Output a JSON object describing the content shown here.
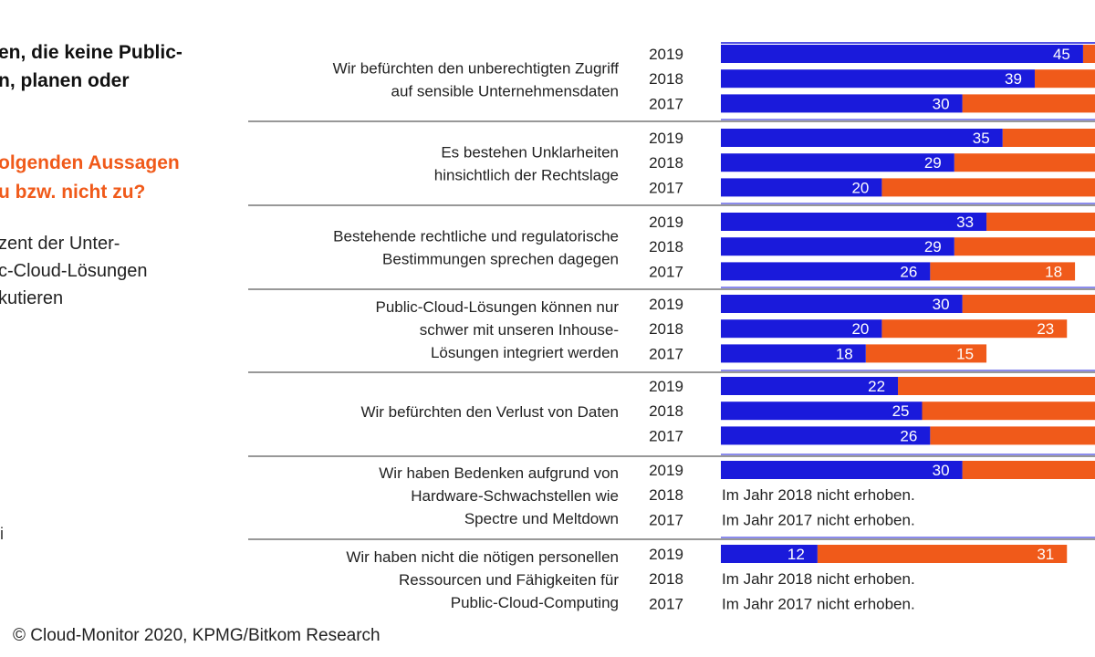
{
  "left_panel": {
    "heading_lines": [
      "en, die keine Public-",
      "n, planen oder"
    ],
    "question_lines": [
      "olgenden Aussagen",
      "u bzw. nicht zu?"
    ],
    "note_lines": [
      "zent der Unter-",
      "c-Cloud-Lösungen",
      "kutieren"
    ],
    "edge_mark": "i"
  },
  "footer": "© Cloud-Monitor 2020, KPMG/Bitkom Research",
  "colors": {
    "blue": "#1a1adb",
    "orange": "#f05a1a",
    "divider": "#777777",
    "top_rule": "#1a1adb"
  },
  "chart_data": {
    "type": "bar",
    "orientation": "horizontal",
    "stacked": true,
    "years": [
      "2019",
      "2018",
      "2017"
    ],
    "series": [
      {
        "color": "blue"
      },
      {
        "color": "orange"
      }
    ],
    "groups": [
      {
        "label_lines": [
          "Wir befürchten den unberechtigten Zugriff",
          "auf sensible Unternehmensdaten"
        ],
        "bars": [
          {
            "year": "2019",
            "blue": 45,
            "blue_label": "45",
            "orange": null,
            "orange_label": ""
          },
          {
            "year": "2018",
            "blue": 39,
            "blue_label": "39",
            "orange": null,
            "orange_label": ""
          },
          {
            "year": "2017",
            "blue": 30,
            "blue_label": "30",
            "orange": null,
            "orange_label": ""
          }
        ]
      },
      {
        "label_lines": [
          "Es bestehen Unklarheiten",
          "hinsichtlich der Rechtslage"
        ],
        "bars": [
          {
            "year": "2019",
            "blue": 35,
            "blue_label": "35",
            "orange": null,
            "orange_label": ""
          },
          {
            "year": "2018",
            "blue": 29,
            "blue_label": "29",
            "orange": null,
            "orange_label": ""
          },
          {
            "year": "2017",
            "blue": 20,
            "blue_label": "20",
            "orange": null,
            "orange_label": ""
          }
        ]
      },
      {
        "label_lines": [
          "Bestehende rechtliche und regulatorische",
          "Bestimmungen sprechen dagegen"
        ],
        "bars": [
          {
            "year": "2019",
            "blue": 33,
            "blue_label": "33",
            "orange": null,
            "orange_label": ""
          },
          {
            "year": "2018",
            "blue": 29,
            "blue_label": "29",
            "orange": null,
            "orange_label": ""
          },
          {
            "year": "2017",
            "blue": 26,
            "blue_label": "26",
            "orange": 18,
            "orange_label": "18"
          }
        ]
      },
      {
        "label_lines": [
          "Public-Cloud-Lösungen können nur",
          "schwer mit unseren Inhouse-",
          "Lösungen integriert werden"
        ],
        "bars": [
          {
            "year": "2019",
            "blue": 30,
            "blue_label": "30",
            "orange": null,
            "orange_label": ""
          },
          {
            "year": "2018",
            "blue": 20,
            "blue_label": "20",
            "orange": 23,
            "orange_label": "23"
          },
          {
            "year": "2017",
            "blue": 18,
            "blue_label": "18",
            "orange": 15,
            "orange_label": "15"
          }
        ]
      },
      {
        "label_lines": [
          "Wir befürchten den Verlust von Daten"
        ],
        "bars": [
          {
            "year": "2019",
            "blue": 22,
            "blue_label": "22",
            "orange": null,
            "orange_label": ""
          },
          {
            "year": "2018",
            "blue": 25,
            "blue_label": "25",
            "orange": null,
            "orange_label": ""
          },
          {
            "year": "2017",
            "blue": 26,
            "blue_label": "26",
            "orange": null,
            "orange_label": ""
          }
        ]
      },
      {
        "label_lines": [
          "Wir haben Bedenken aufgrund von",
          "Hardware-Schwachstellen wie",
          "Spectre und Meltdown"
        ],
        "bars": [
          {
            "year": "2019",
            "blue": 30,
            "blue_label": "30",
            "orange": null,
            "orange_label": ""
          },
          {
            "year": "2018",
            "note": "Im Jahr 2018 nicht erhoben."
          },
          {
            "year": "2017",
            "note": "Im Jahr 2017 nicht erhoben."
          }
        ]
      },
      {
        "label_lines": [
          "Wir haben nicht die nötigen personellen",
          "Ressourcen und Fähigkeiten für",
          "Public-Cloud-Computing"
        ],
        "bars": [
          {
            "year": "2019",
            "blue": 12,
            "blue_label": "12",
            "orange": 31,
            "orange_label": "31"
          },
          {
            "year": "2018",
            "note": "Im Jahr 2018 nicht erhoben."
          },
          {
            "year": "2017",
            "note": "Im Jahr 2017 nicht erhoben."
          }
        ]
      }
    ]
  }
}
